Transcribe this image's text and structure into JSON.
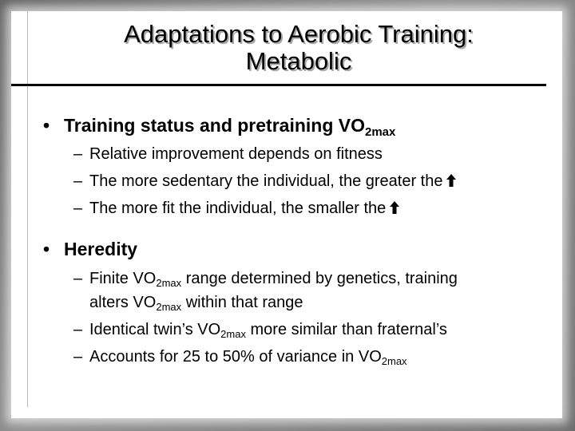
{
  "slide": {
    "title_line1": "Adaptations to Aerobic Training:",
    "title_line2": "Metabolic",
    "bullet1": {
      "marker": "•",
      "text": "Training status and pretraining VO",
      "subscript": "2max",
      "items": [
        {
          "marker": "–",
          "text": "Relative improvement depends on fitness"
        },
        {
          "marker": "–",
          "text": "The more sedentary the individual, the greater the",
          "icon": "up-arrow-icon"
        },
        {
          "marker": "–",
          "text": "The more fit the individual, the smaller the",
          "icon": "up-arrow-icon"
        }
      ]
    },
    "bullet2": {
      "marker": "•",
      "text": "Heredity",
      "items": [
        {
          "marker": "–",
          "line1_pre": "Finite VO",
          "sub1": "2max",
          "line1_post": " range determined by genetics, training",
          "line2_pre": "alters VO",
          "sub2": "2max",
          "line2_post": " within that range"
        },
        {
          "marker": "–",
          "pre": "Identical twin’s VO",
          "sub": "2max",
          "post": " more similar than fraternal’s"
        },
        {
          "marker": "–",
          "pre": "Accounts for 25 to 50% of variance in VO",
          "sub": "2max"
        }
      ]
    }
  }
}
